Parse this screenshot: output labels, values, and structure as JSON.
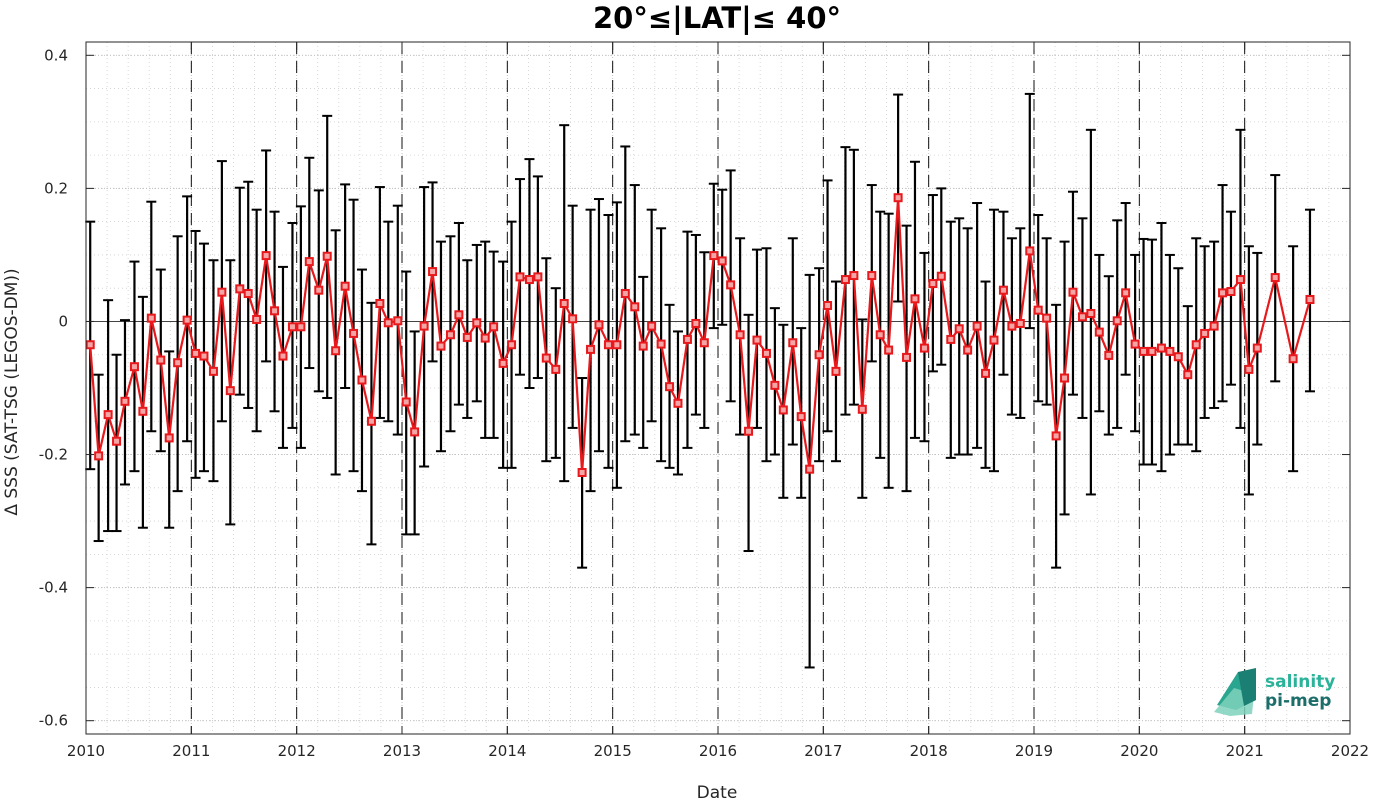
{
  "chart_data": {
    "type": "line",
    "title": "20°≤|LAT|≤ 40°",
    "xlabel": "Date",
    "ylabel": "Δ SSS (SAT-TSG (LEGOS-DM))",
    "xlim": [
      2010,
      2022
    ],
    "ylim": [
      -0.62,
      0.42
    ],
    "x_ticks": [
      "2010",
      "2011",
      "2012",
      "2013",
      "2014",
      "2015",
      "2016",
      "2017",
      "2018",
      "2019",
      "2020",
      "2021",
      "2022"
    ],
    "y_ticks": [
      "0.4",
      "0.2",
      "0",
      "-0.2",
      "-0.4",
      "-0.6"
    ],
    "y_tick_values": [
      0.4,
      0.2,
      0,
      -0.2,
      -0.4,
      -0.6
    ],
    "grid": "dotted major and minor",
    "year_boundaries": [
      2011,
      2012,
      2013,
      2014,
      2015,
      2016,
      2017,
      2018,
      2019,
      2020,
      2021
    ],
    "series": [
      {
        "color": "#e8191c",
        "marker": "square",
        "x": [
          2010.04,
          2010.12,
          2010.21,
          2010.29,
          2010.37,
          2010.46,
          2010.54,
          2010.62,
          2010.71,
          2010.79,
          2010.87,
          2010.96,
          2011.04,
          2011.12,
          2011.21,
          2011.29,
          2011.37,
          2011.46,
          2011.54,
          2011.62,
          2011.71,
          2011.79,
          2011.87,
          2011.96,
          2012.04,
          2012.12,
          2012.21,
          2012.29,
          2012.37,
          2012.46,
          2012.54,
          2012.62,
          2012.71,
          2012.79,
          2012.87,
          2012.96,
          2013.04,
          2013.12,
          2013.21,
          2013.29,
          2013.37,
          2013.46,
          2013.54,
          2013.62,
          2013.71,
          2013.79,
          2013.87,
          2013.96,
          2014.04,
          2014.12,
          2014.21,
          2014.29,
          2014.37,
          2014.46,
          2014.54,
          2014.62,
          2014.71,
          2014.79,
          2014.87,
          2014.96,
          2015.04,
          2015.12,
          2015.21,
          2015.29,
          2015.37,
          2015.46,
          2015.54,
          2015.62,
          2015.71,
          2015.79,
          2015.87,
          2015.96,
          2016.04,
          2016.12,
          2016.21,
          2016.29,
          2016.37,
          2016.46,
          2016.54,
          2016.62,
          2016.71,
          2016.79,
          2016.87,
          2016.96,
          2017.04,
          2017.12,
          2017.21,
          2017.29,
          2017.37,
          2017.46,
          2017.54,
          2017.62,
          2017.71,
          2017.79,
          2017.87,
          2017.96,
          2018.04,
          2018.12,
          2018.21,
          2018.29,
          2018.37,
          2018.46,
          2018.54,
          2018.62,
          2018.71,
          2018.79,
          2018.87,
          2018.96,
          2019.04,
          2019.12,
          2019.21,
          2019.29,
          2019.37,
          2019.46,
          2019.54,
          2019.62,
          2019.71,
          2019.79,
          2019.87,
          2019.96,
          2020.04,
          2020.12,
          2020.21,
          2020.29,
          2020.37,
          2020.46,
          2020.54,
          2020.62,
          2020.71,
          2020.79,
          2020.87,
          2020.96,
          2021.04,
          2021.12,
          2021.29,
          2021.46,
          2021.62
        ],
        "y": [
          -0.035,
          -0.202,
          -0.14,
          -0.18,
          -0.12,
          -0.068,
          -0.135,
          0.005,
          -0.058,
          -0.175,
          -0.062,
          0.002,
          -0.048,
          -0.052,
          -0.075,
          0.044,
          -0.104,
          0.049,
          0.042,
          0.003,
          0.099,
          0.016,
          -0.052,
          -0.008,
          -0.008,
          0.09,
          0.047,
          0.098,
          -0.044,
          0.053,
          -0.018,
          -0.088,
          -0.15,
          0.027,
          -0.002,
          0.001,
          -0.121,
          -0.166,
          -0.007,
          0.075,
          -0.037,
          -0.02,
          0.01,
          -0.024,
          -0.002,
          -0.025,
          -0.008,
          -0.063,
          -0.035,
          0.067,
          0.063,
          0.067,
          -0.055,
          -0.072,
          0.027,
          0.004,
          -0.227,
          -0.042,
          -0.005,
          -0.035,
          -0.035,
          0.042,
          0.022,
          -0.037,
          -0.007,
          -0.034,
          -0.098,
          -0.123,
          -0.027,
          -0.003,
          -0.032,
          0.099,
          0.091,
          0.055,
          -0.02,
          -0.165,
          -0.028,
          -0.048,
          -0.096,
          -0.133,
          -0.032,
          -0.143,
          -0.222,
          -0.05,
          0.024,
          -0.075,
          0.063,
          0.069,
          -0.132,
          0.069,
          -0.02,
          -0.043,
          0.186,
          -0.054,
          0.034,
          -0.04,
          0.057,
          0.068,
          -0.027,
          -0.011,
          -0.043,
          -0.007,
          -0.078,
          -0.028,
          0.047,
          -0.007,
          -0.003,
          0.106,
          0.017,
          0.005,
          -0.172,
          -0.085,
          0.044,
          0.007,
          0.012,
          -0.016,
          -0.051,
          0.001,
          0.043,
          -0.034,
          -0.045,
          -0.045,
          -0.04,
          -0.045,
          -0.053,
          -0.08,
          -0.035,
          -0.018,
          -0.007,
          0.043,
          0.045,
          0.063,
          -0.072,
          -0.04,
          0.066,
          -0.056,
          0.033
        ],
        "err_low": [
          -0.222,
          -0.33,
          -0.315,
          -0.315,
          -0.245,
          -0.225,
          -0.31,
          -0.165,
          -0.195,
          -0.31,
          -0.255,
          -0.18,
          -0.235,
          -0.225,
          -0.24,
          -0.15,
          -0.305,
          -0.11,
          -0.13,
          -0.165,
          -0.06,
          -0.135,
          -0.19,
          -0.16,
          -0.19,
          -0.07,
          -0.105,
          -0.115,
          -0.23,
          -0.1,
          -0.225,
          -0.255,
          -0.335,
          -0.145,
          -0.15,
          -0.17,
          -0.32,
          -0.32,
          -0.218,
          -0.06,
          -0.195,
          -0.165,
          -0.125,
          -0.145,
          -0.12,
          -0.175,
          -0.175,
          -0.22,
          -0.22,
          -0.08,
          -0.1,
          -0.085,
          -0.21,
          -0.205,
          -0.24,
          -0.16,
          -0.37,
          -0.255,
          -0.195,
          -0.22,
          -0.25,
          -0.18,
          -0.17,
          -0.19,
          -0.15,
          -0.21,
          -0.22,
          -0.23,
          -0.19,
          -0.14,
          -0.16,
          -0.01,
          -0.005,
          -0.12,
          -0.17,
          -0.345,
          -0.16,
          -0.21,
          -0.2,
          -0.265,
          -0.185,
          -0.265,
          -0.52,
          -0.21,
          -0.165,
          -0.21,
          -0.14,
          -0.125,
          -0.265,
          -0.06,
          -0.205,
          -0.25,
          0.03,
          -0.255,
          -0.175,
          -0.18,
          -0.075,
          -0.065,
          -0.205,
          -0.2,
          -0.2,
          -0.19,
          -0.22,
          -0.225,
          -0.08,
          -0.14,
          -0.145,
          -0.01,
          -0.12,
          -0.125,
          -0.37,
          -0.29,
          -0.11,
          -0.145,
          -0.26,
          -0.135,
          -0.17,
          -0.16,
          -0.08,
          -0.165,
          -0.215,
          -0.215,
          -0.225,
          -0.2,
          -0.185,
          -0.185,
          -0.195,
          -0.145,
          -0.13,
          -0.12,
          -0.095,
          -0.16,
          -0.26,
          -0.185,
          -0.09,
          -0.225,
          -0.105
        ],
        "err_high": [
          0.15,
          -0.08,
          0.032,
          -0.05,
          0.002,
          0.09,
          0.037,
          0.18,
          0.078,
          -0.045,
          0.128,
          0.188,
          0.136,
          0.117,
          0.092,
          0.241,
          0.092,
          0.201,
          0.21,
          0.168,
          0.257,
          0.165,
          0.082,
          0.148,
          0.173,
          0.246,
          0.197,
          0.309,
          0.137,
          0.206,
          0.183,
          0.078,
          0.028,
          0.202,
          0.15,
          0.174,
          0.075,
          -0.015,
          0.202,
          0.209,
          0.12,
          0.128,
          0.148,
          0.092,
          0.115,
          0.12,
          0.105,
          0.09,
          0.15,
          0.214,
          0.244,
          0.218,
          0.095,
          0.05,
          0.295,
          0.174,
          -0.085,
          0.168,
          0.184,
          0.16,
          0.179,
          0.263,
          0.205,
          0.067,
          0.168,
          0.14,
          0.025,
          -0.015,
          0.135,
          0.13,
          0.104,
          0.207,
          0.198,
          0.227,
          0.125,
          0.01,
          0.108,
          0.11,
          0.02,
          -0.005,
          0.125,
          -0.01,
          0.07,
          0.08,
          0.212,
          0.06,
          0.262,
          0.258,
          0.003,
          0.205,
          0.165,
          0.162,
          0.341,
          0.144,
          0.24,
          0.103,
          0.19,
          0.2,
          0.15,
          0.155,
          0.14,
          0.178,
          0.06,
          0.168,
          0.165,
          0.125,
          0.14,
          0.342,
          0.16,
          0.125,
          0.025,
          0.12,
          0.195,
          0.155,
          0.288,
          0.1,
          0.068,
          0.152,
          0.178,
          0.1,
          0.124,
          0.123,
          0.148,
          0.1,
          0.08,
          0.023,
          0.125,
          0.113,
          0.12,
          0.205,
          0.165,
          0.288,
          0.113,
          0.103,
          0.22,
          0.113,
          0.168
        ]
      }
    ],
    "logo": {
      "line1": "salinity",
      "line2": "pi-mep"
    }
  }
}
